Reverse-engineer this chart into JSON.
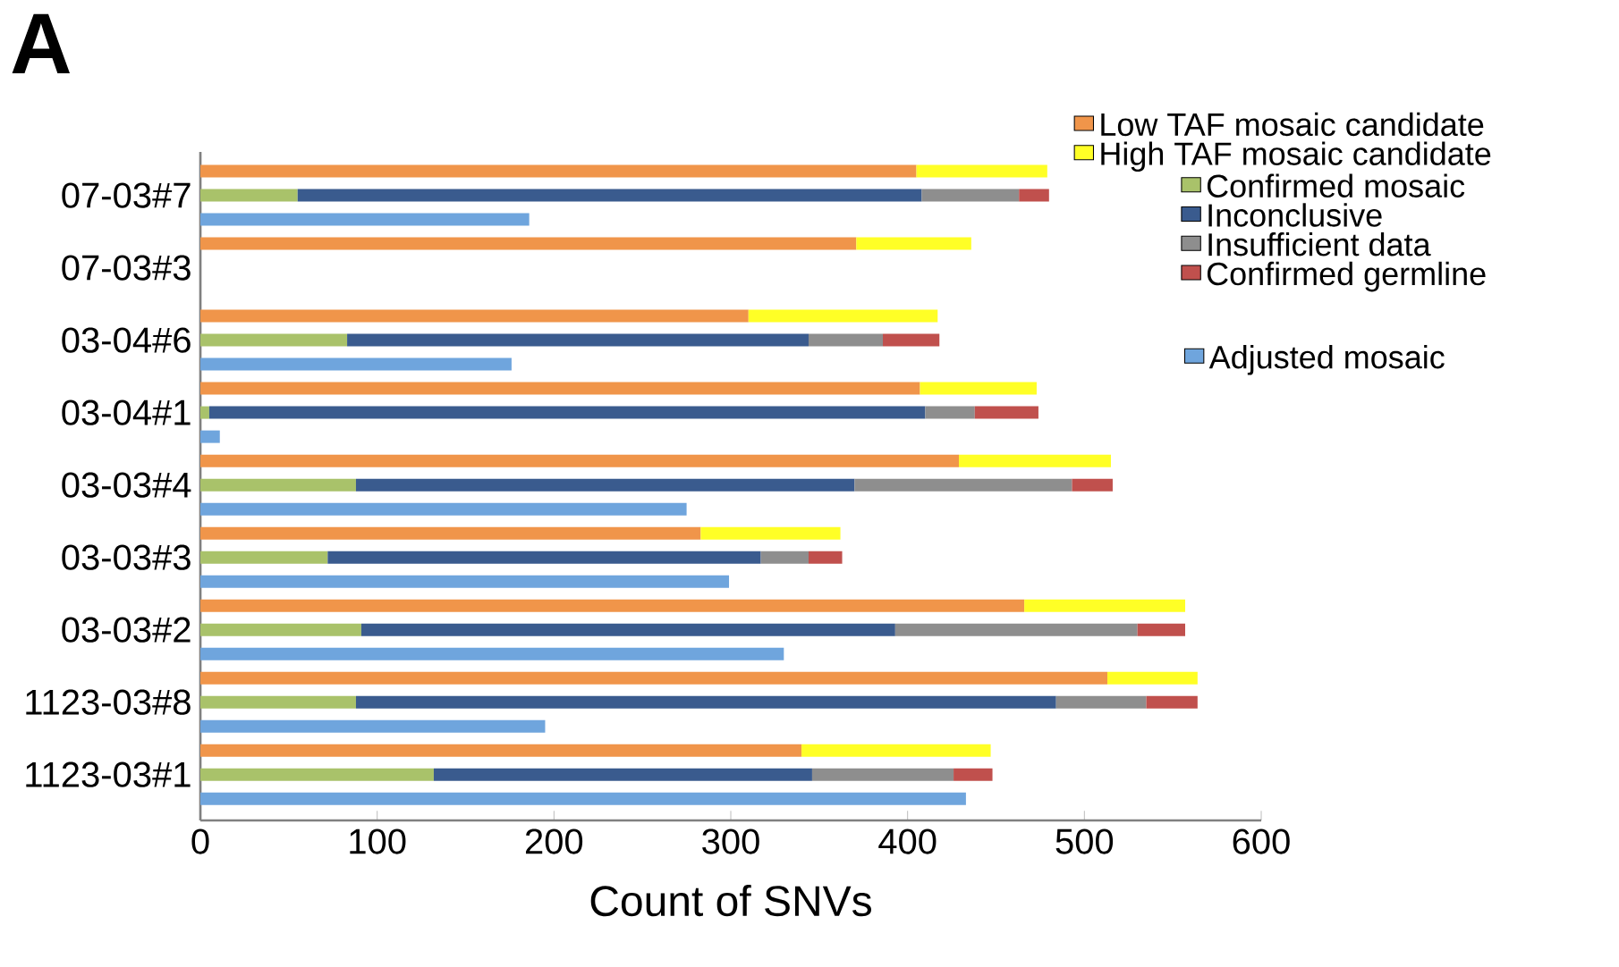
{
  "chart_data": {
    "type": "bar",
    "orientation": "horizontal",
    "stacked": true,
    "title": "A",
    "xlabel": "Count of SNVs",
    "categories": [
      null,
      "07-03#7",
      null,
      null,
      "07-03#3",
      null,
      null,
      "03-04#6",
      null,
      null,
      "03-04#1",
      null,
      null,
      "03-03#4",
      null,
      null,
      "03-03#3",
      null,
      null,
      "03-03#2",
      null,
      null,
      "1123-03#8",
      null,
      null,
      "1123-03#1",
      null
    ],
    "xlim": [
      0,
      600
    ],
    "xticks": [
      0,
      100,
      200,
      300,
      400,
      500,
      600
    ],
    "legend": "top right",
    "series": [
      {
        "name": "Low TAF mosaic candidate",
        "color": "#f0954a",
        "values": [
          405,
          null,
          null,
          371,
          null,
          null,
          310,
          null,
          null,
          407,
          null,
          null,
          429,
          null,
          null,
          283,
          null,
          null,
          466,
          null,
          null,
          513,
          null,
          null,
          340,
          null,
          null
        ]
      },
      {
        "name": "High TAF mosaic candidate",
        "color": "#ffff26",
        "values": [
          74,
          null,
          null,
          65,
          null,
          null,
          107,
          null,
          null,
          66,
          null,
          null,
          86,
          null,
          null,
          79,
          null,
          null,
          91,
          null,
          null,
          51,
          null,
          null,
          107,
          null,
          null
        ]
      },
      {
        "name": "Confirmed mosaic",
        "color": "#a9c26a",
        "values": [
          null,
          55,
          null,
          null,
          null,
          null,
          null,
          83,
          null,
          null,
          5,
          null,
          null,
          88,
          null,
          null,
          72,
          null,
          null,
          91,
          null,
          null,
          88,
          null,
          null,
          132,
          null
        ]
      },
      {
        "name": "Inconclusive",
        "color": "#3a5b8e",
        "values": [
          null,
          353,
          null,
          null,
          null,
          null,
          null,
          261,
          null,
          null,
          405,
          null,
          null,
          282,
          null,
          null,
          245,
          null,
          null,
          302,
          null,
          null,
          396,
          null,
          null,
          214,
          null
        ]
      },
      {
        "name": "Insufficient data",
        "color": "#8e8e8e",
        "values": [
          null,
          55,
          null,
          null,
          null,
          null,
          null,
          42,
          null,
          null,
          28,
          null,
          null,
          123,
          null,
          null,
          27,
          null,
          null,
          137,
          null,
          null,
          51,
          null,
          null,
          80,
          null
        ]
      },
      {
        "name": "Confirmed germline",
        "color": "#c0504d",
        "values": [
          null,
          17,
          null,
          null,
          null,
          null,
          null,
          32,
          null,
          null,
          36,
          null,
          null,
          23,
          null,
          null,
          19,
          null,
          null,
          27,
          null,
          null,
          29,
          null,
          null,
          22,
          null
        ]
      },
      {
        "name": "Adjusted mosaic",
        "color": "#6fa5dd",
        "values": [
          null,
          null,
          186,
          null,
          null,
          null,
          null,
          null,
          176,
          null,
          null,
          11,
          null,
          null,
          275,
          null,
          null,
          299,
          null,
          null,
          330,
          null,
          null,
          195,
          null,
          null,
          433
        ]
      }
    ]
  }
}
